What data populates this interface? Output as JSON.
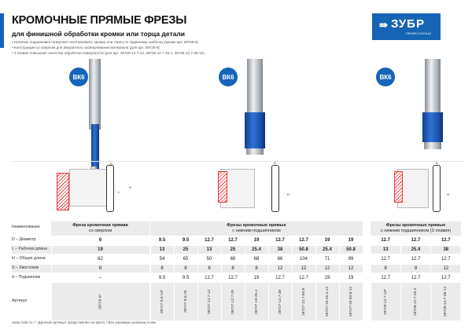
{
  "header": {
    "title": "КРОМОЧНЫЕ ПРЯМЫЕ ФРЕЗЫ",
    "subtitle": "для финишной обработки кромки или торца детали",
    "bullets": [
      "Наличие подшипника позволяет изготавливать кромку или торец по заданному шаблону (кроме арт. 28726-6)",
      "Конструкция со сверлом для аккуратного засверливания материала (для арт. 28726-6)",
      "3 лезвия повышают качество обработки поверхности (для арт. 28728-12.7-13, 28728-12.7-25.4, 28728-12.7-38-12)"
    ]
  },
  "logo": {
    "text": "ЗУБР",
    "subtext": "ПРОФЕССИОНАЛ",
    "color": "#1665b4"
  },
  "badges": [
    "ВК6",
    "ВК6",
    "ВК6"
  ],
  "diagram_labels": {
    "s": "S",
    "l": "L",
    "h": "H",
    "d": "d"
  },
  "table": {
    "row_labels": [
      "Наименование",
      "D – Диаметр",
      "L – Рабочая длина",
      "H – Общая длина",
      "S – Хвостовик",
      "d – Подшипник",
      "Артикул"
    ],
    "groups": [
      {
        "title": "Фреза кромочная прямая",
        "subtitle": "со сверлом",
        "columns": [
          {
            "D": "6",
            "L": "19",
            "H": "62",
            "S": "8",
            "d": "–",
            "art": "28726-6*"
          }
        ]
      },
      {
        "title": "Фрезы кромочные прямые",
        "subtitle": "с нижним подшипником",
        "columns": [
          {
            "D": "9.5",
            "L": "13",
            "H": "54",
            "S": "8",
            "d": "9.5",
            "art": "28727-9.5-13*"
          },
          {
            "D": "9.5",
            "L": "25",
            "H": "65",
            "S": "8",
            "d": "9.5",
            "art": "28727-9.5-25"
          },
          {
            "D": "12.7",
            "L": "13",
            "H": "50",
            "S": "8",
            "d": "12.7",
            "art": "28727-12.7-13"
          },
          {
            "D": "12.7",
            "L": "25",
            "H": "66",
            "S": "8",
            "d": "12.7",
            "art": "28727-12.7-25"
          },
          {
            "D": "19",
            "L": "25.4",
            "H": "68",
            "S": "8",
            "d": "19",
            "art": "28727-19-25.4"
          },
          {
            "D": "12.7",
            "L": "38",
            "H": "86",
            "S": "12",
            "d": "12.7",
            "art": "28727-12.7-38"
          },
          {
            "D": "12.7",
            "L": "50.8",
            "H": "104",
            "S": "12",
            "d": "12.7",
            "art": "28727-12.7-50.8"
          },
          {
            "D": "19",
            "L": "25.4",
            "H": "71",
            "S": "12",
            "d": "19",
            "art": "28727-19-25.4-12"
          },
          {
            "D": "19",
            "L": "50.8",
            "H": "99",
            "S": "12",
            "d": "19",
            "art": "28727-19-50.8-12"
          }
        ]
      },
      {
        "title": "Фрезы кромочные прямые",
        "subtitle": "с нижним подшипником (3 лезвия)",
        "columns": [
          {
            "D": "12.7",
            "L": "13",
            "H": "12.7",
            "S": "8",
            "d": "12.7",
            "art": "28728-12.7-13*"
          },
          {
            "D": "12.7",
            "L": "25.4",
            "H": "12.7",
            "S": "8",
            "d": "12.7",
            "art": "28728-12.7-25.4"
          },
          {
            "D": "12.7",
            "L": "38",
            "H": "12.7",
            "S": "12",
            "d": "12.7",
            "art": "28728-12.7-38-12"
          }
        ]
      }
    ]
  },
  "footer": "www.zubr.ru  /  * Данный артикул представлен на фото  /  Все размеры указаны в мм"
}
